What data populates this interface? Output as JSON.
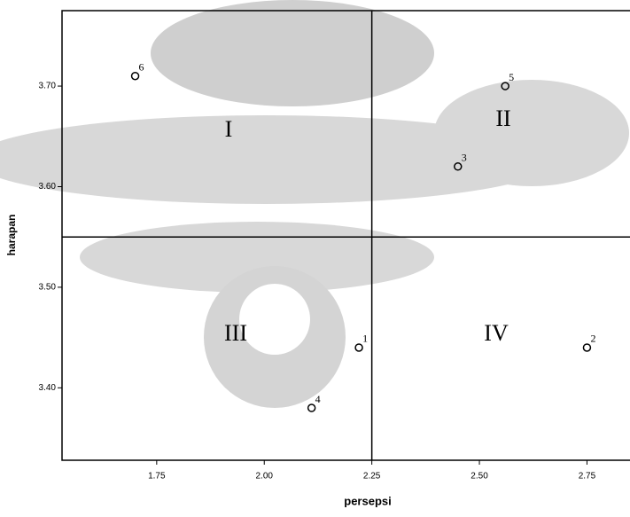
{
  "chart_data": {
    "type": "scatter",
    "x_label": "persepsi",
    "y_label": "harapan",
    "series": [
      {
        "color": "#000000",
        "x": [
          2.22,
          2.75,
          2.45,
          2.11,
          2.56,
          1.7
        ],
        "values": [
          3.44,
          3.44,
          3.62,
          3.38,
          3.7,
          3.71
        ],
        "labels": [
          "1",
          "2",
          "3",
          "4",
          "5",
          "6"
        ]
      }
    ],
    "xlim": [
      1.53,
      2.85
    ],
    "ylim": [
      3.328,
      3.775
    ],
    "xticks": [
      {
        "value": 1.75,
        "label": "1.75"
      },
      {
        "value": 2,
        "label": "2.00"
      },
      {
        "value": 2.25,
        "label": "2.25"
      },
      {
        "value": 2.5,
        "label": "2.50"
      },
      {
        "value": 2.75,
        "label": "2.75"
      }
    ],
    "yticks": [
      {
        "value": 3.4,
        "label": "3.40"
      },
      {
        "value": 3.5,
        "label": "3.50"
      },
      {
        "value": 3.6,
        "label": "3.60"
      },
      {
        "value": 3.7,
        "label": "3.70"
      }
    ],
    "reference_lines": {
      "x": 2.25,
      "y": 3.55
    },
    "annotations": [
      "I",
      "II",
      "III",
      "IV"
    ]
  }
}
